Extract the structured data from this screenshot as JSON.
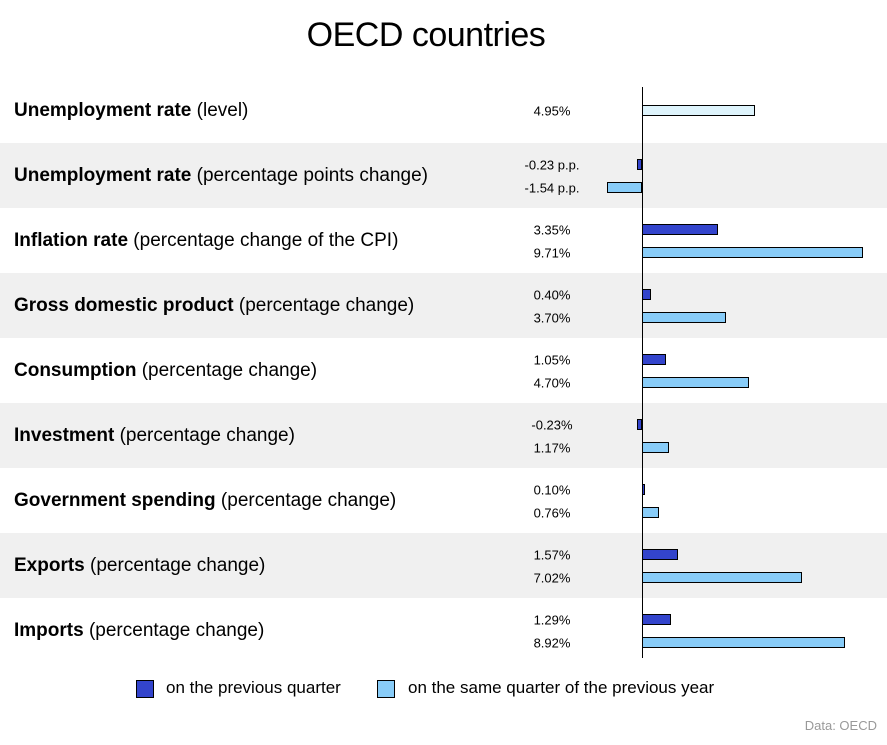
{
  "title": "OECD countries",
  "chart_data": {
    "type": "bar",
    "orientation": "horizontal",
    "title": "OECD countries",
    "categories": [
      {
        "bold": "Unemployment rate",
        "rest": " (level)"
      },
      {
        "bold": "Unemployment rate",
        "rest": " (percentage points change)"
      },
      {
        "bold": "Inflation rate",
        "rest": " (percentage change of the CPI)"
      },
      {
        "bold": "Gross domestic product",
        "rest": " (percentage change)"
      },
      {
        "bold": "Consumption",
        "rest": " (percentage change)"
      },
      {
        "bold": "Investment",
        "rest": " (percentage change)"
      },
      {
        "bold": "Government spending",
        "rest": " (percentage change)"
      },
      {
        "bold": "Exports",
        "rest": " (percentage change)"
      },
      {
        "bold": "Imports",
        "rest": " (percentage change)"
      }
    ],
    "series": [
      {
        "name": "on the previous quarter",
        "color": "#3344cc",
        "values": [
          null,
          -0.23,
          3.35,
          0.4,
          1.05,
          -0.23,
          0.1,
          1.57,
          1.29
        ],
        "labels": [
          null,
          "-0.23 p.p.",
          "3.35%",
          "0.40%",
          "1.05%",
          "-0.23%",
          "0.10%",
          "1.57%",
          "1.29%"
        ]
      },
      {
        "name": "on the same quarter of the previous year",
        "color": "#88ccf8",
        "values": [
          null,
          -1.54,
          9.71,
          3.7,
          4.7,
          1.17,
          0.76,
          7.02,
          8.92
        ],
        "labels": [
          null,
          "-1.54 p.p.",
          "9.71%",
          "3.70%",
          "4.70%",
          "1.17%",
          "0.76%",
          "7.02%",
          "8.92%"
        ]
      }
    ],
    "level": {
      "value": 4.95,
      "label": "4.95%",
      "color": "#def4fc"
    },
    "legend_position": "bottom"
  },
  "source": "Data: OECD"
}
